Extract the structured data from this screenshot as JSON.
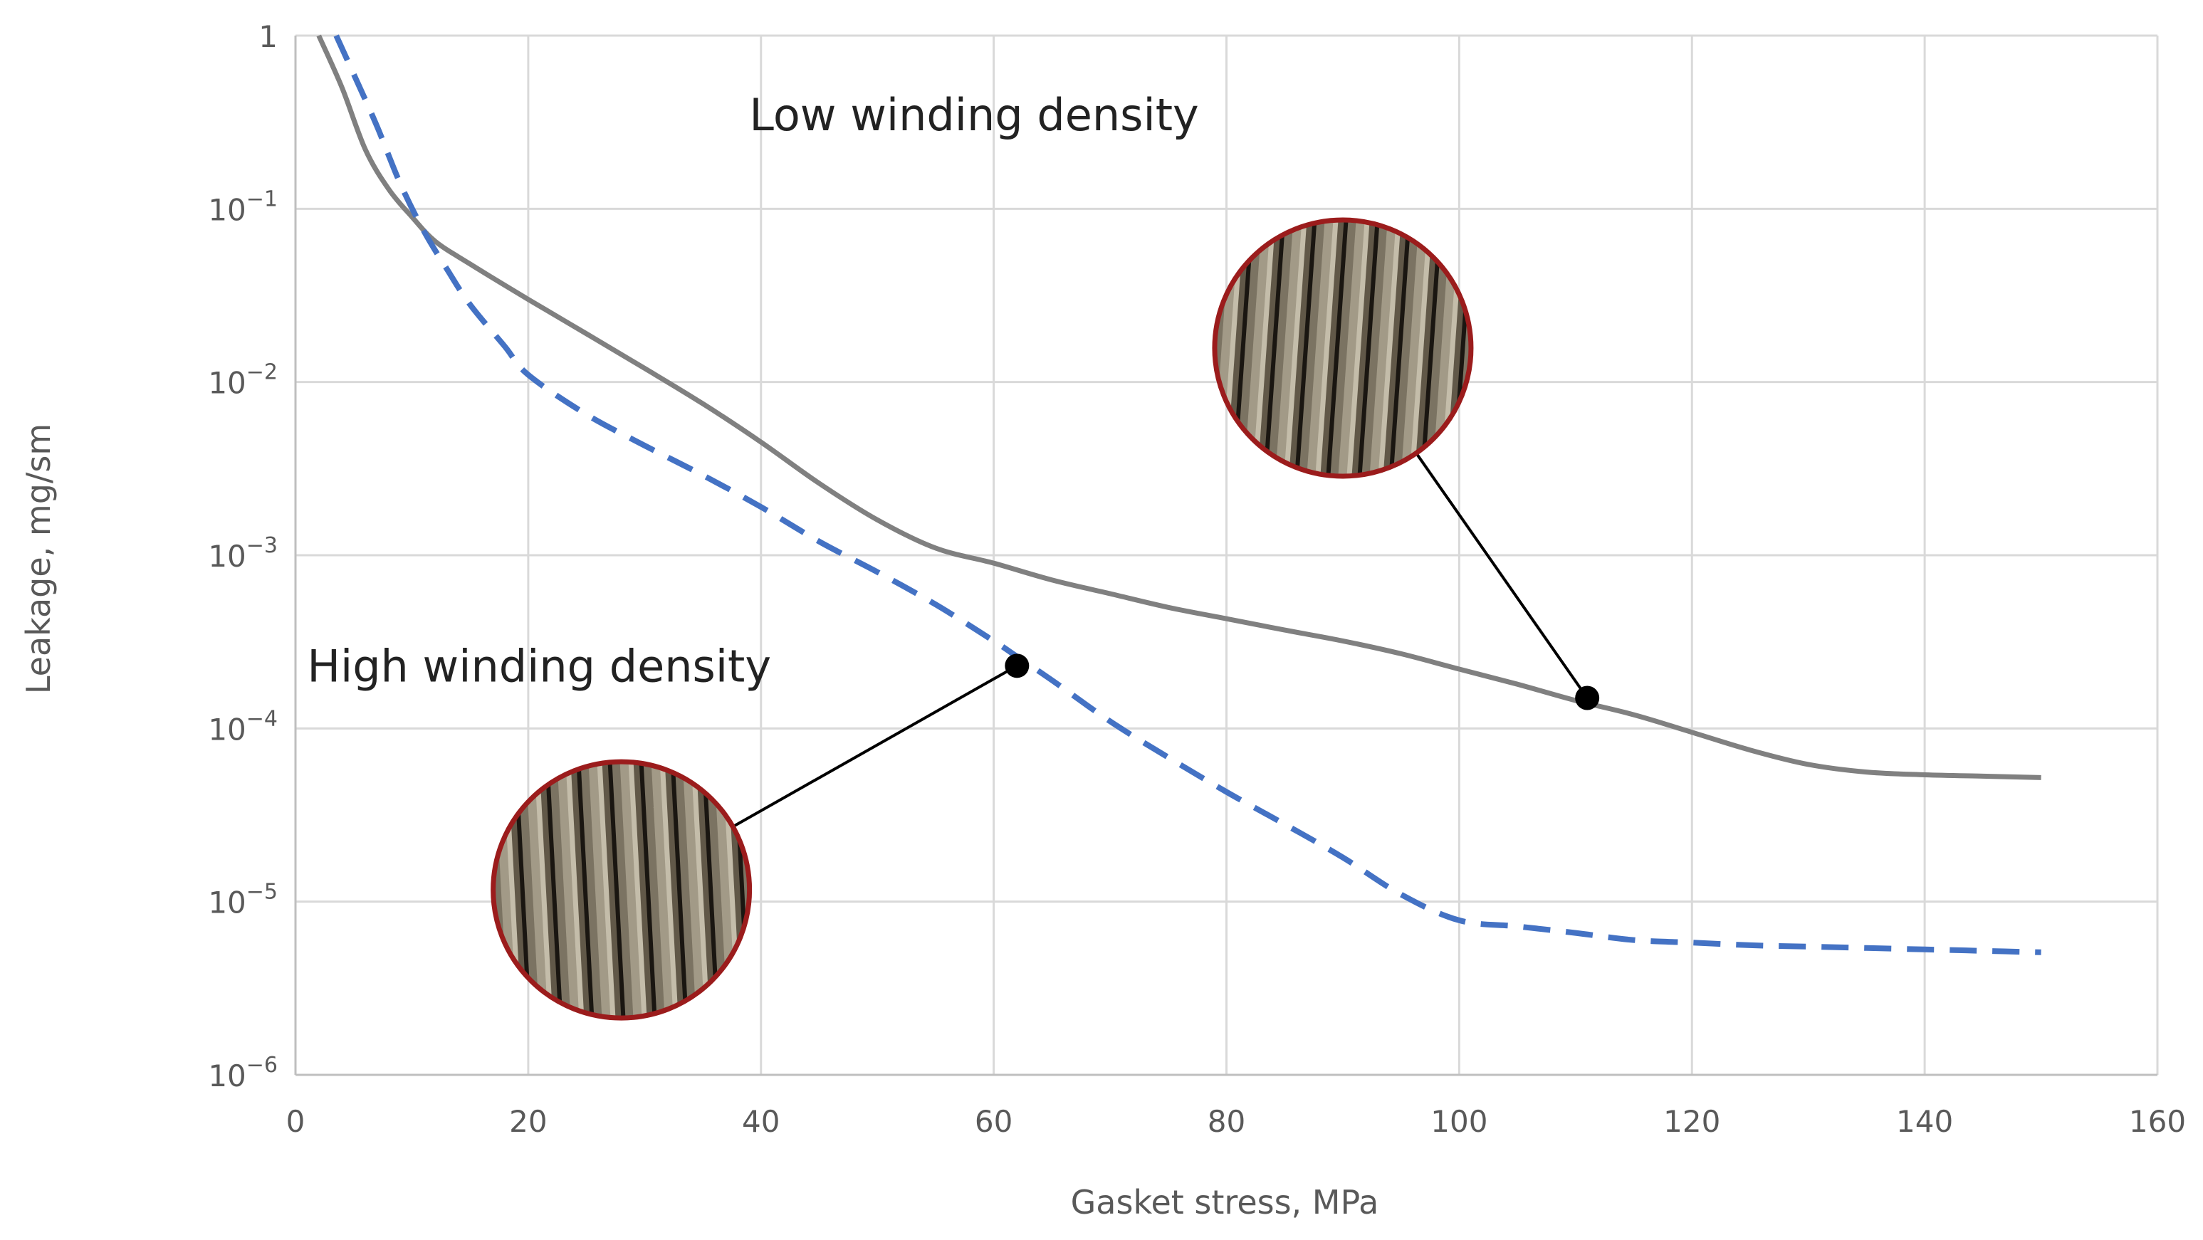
{
  "chart_data": {
    "type": "line",
    "title": "",
    "xlabel": "Gasket stress, MPa",
    "ylabel": "Leakage, mg/sm",
    "xlim": [
      0,
      160
    ],
    "ylim": [
      1e-06,
      1
    ],
    "yscale": "log",
    "grid": true,
    "x_ticks": [
      0,
      20,
      40,
      60,
      80,
      100,
      120,
      140,
      160
    ],
    "y_ticks": [
      {
        "value": 1,
        "base": "1",
        "exp": ""
      },
      {
        "value": 0.1,
        "base": "10",
        "exp": "−1"
      },
      {
        "value": 0.01,
        "base": "10",
        "exp": "−2"
      },
      {
        "value": 0.001,
        "base": "10",
        "exp": "−3"
      },
      {
        "value": 0.0001,
        "base": "10",
        "exp": "−4"
      },
      {
        "value": 1e-05,
        "base": "10",
        "exp": "−5"
      },
      {
        "value": 1e-06,
        "base": "10",
        "exp": "−6"
      }
    ],
    "series": [
      {
        "style": "solid",
        "color": "#808080",
        "points": [
          [
            2,
            1
          ],
          [
            4,
            0.5
          ],
          [
            6,
            0.22
          ],
          [
            8,
            0.13
          ],
          [
            10,
            0.09
          ],
          [
            12,
            0.065
          ],
          [
            15,
            0.048
          ],
          [
            20,
            0.03
          ],
          [
            25,
            0.019
          ],
          [
            30,
            0.012
          ],
          [
            35,
            0.0075
          ],
          [
            40,
            0.0045
          ],
          [
            45,
            0.0026
          ],
          [
            50,
            0.0016
          ],
          [
            55,
            0.0011
          ],
          [
            60,
            0.0009
          ],
          [
            65,
            0.00072
          ],
          [
            70,
            0.0006
          ],
          [
            75,
            0.0005
          ],
          [
            80,
            0.00043
          ],
          [
            85,
            0.00037
          ],
          [
            90,
            0.00032
          ],
          [
            95,
            0.00027
          ],
          [
            100,
            0.00022
          ],
          [
            105,
            0.00018
          ],
          [
            110,
            0.000145
          ],
          [
            115,
            0.00012
          ],
          [
            120,
            9.5e-05
          ],
          [
            125,
            7.5e-05
          ],
          [
            130,
            6.2e-05
          ],
          [
            135,
            5.6e-05
          ],
          [
            140,
            5.4e-05
          ],
          [
            145,
            5.3e-05
          ],
          [
            150,
            5.2e-05
          ]
        ]
      },
      {
        "style": "dashed",
        "color": "#4472C4",
        "points": [
          [
            3.5,
            1
          ],
          [
            5,
            0.6
          ],
          [
            7,
            0.3
          ],
          [
            9,
            0.14
          ],
          [
            11,
            0.075
          ],
          [
            13,
            0.045
          ],
          [
            15,
            0.028
          ],
          [
            18,
            0.016
          ],
          [
            20,
            0.011
          ],
          [
            25,
            0.0065
          ],
          [
            30,
            0.0043
          ],
          [
            35,
            0.0029
          ],
          [
            40,
            0.0019
          ],
          [
            45,
            0.0012
          ],
          [
            50,
            0.0008
          ],
          [
            55,
            0.00052
          ],
          [
            60,
            0.00032
          ],
          [
            62,
            0.00026
          ],
          [
            65,
            0.00019
          ],
          [
            70,
            0.00011
          ],
          [
            75,
            6.8e-05
          ],
          [
            80,
            4.3e-05
          ],
          [
            85,
            2.8e-05
          ],
          [
            90,
            1.8e-05
          ],
          [
            95,
            1.1e-05
          ],
          [
            100,
            7.8e-06
          ],
          [
            105,
            7.2e-06
          ],
          [
            110,
            6.6e-06
          ],
          [
            115,
            6e-06
          ],
          [
            120,
            5.8e-06
          ],
          [
            125,
            5.6e-06
          ],
          [
            130,
            5.5e-06
          ],
          [
            140,
            5.3e-06
          ],
          [
            145,
            5.2e-06
          ],
          [
            150,
            5.1e-06
          ]
        ]
      }
    ],
    "markers": [
      {
        "x": 62,
        "y": 0.00023
      },
      {
        "x": 111,
        "y": 0.00015
      }
    ],
    "annotations": [
      {
        "text": "Low winding density",
        "x": 39,
        "y": 0.35
      },
      {
        "text": "High winding density",
        "x": 1,
        "y": 0.00023
      }
    ],
    "insets": [
      {
        "cx": 90,
        "cy": 0.0157,
        "callout_to": 1
      },
      {
        "cx": 28,
        "cy": 1.17e-05,
        "callout_to": 0
      }
    ]
  },
  "colors": {
    "grid": "#d9d9d9",
    "inset_border": "#9b1c1c",
    "callout": "#000000"
  }
}
